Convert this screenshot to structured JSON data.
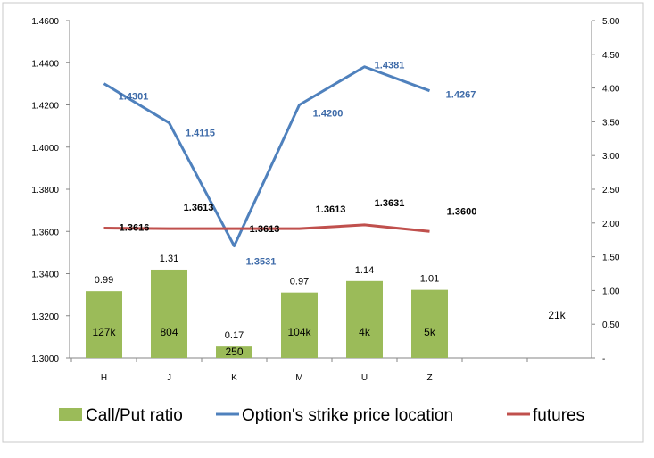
{
  "chart_data": {
    "type": "bar",
    "categories": [
      "H",
      "J",
      "K",
      "M",
      "U",
      "Z"
    ],
    "left_axis": {
      "min": 1.3,
      "max": 1.46,
      "ticks": [
        "1.3000",
        "1.3200",
        "1.3400",
        "1.3600",
        "1.3800",
        "1.4000",
        "1.4200",
        "1.4400",
        "1.4600"
      ]
    },
    "right_axis": {
      "min": 0,
      "max": 5,
      "ticks": [
        "-",
        "0.50",
        "1.00",
        "1.50",
        "2.00",
        "2.50",
        "3.00",
        "3.50",
        "4.00",
        "4.50",
        "5.00"
      ]
    },
    "series": [
      {
        "name": "Call/Put ratio",
        "kind": "bar",
        "axis": "right",
        "color": "#9bbb59",
        "values": [
          0.99,
          1.31,
          0.17,
          0.97,
          1.14,
          1.01
        ],
        "labels": [
          "0.99",
          "1.31",
          "0.17",
          "0.97",
          "1.14",
          "1.01"
        ],
        "volume_labels": [
          "127k",
          "804",
          "250",
          "104k",
          "4k",
          "5k"
        ]
      },
      {
        "name": "Option's strike price location",
        "kind": "line",
        "axis": "left",
        "color": "#4f81bd",
        "values": [
          1.4301,
          1.4115,
          1.3531,
          1.42,
          1.4381,
          1.4267
        ],
        "labels": [
          "1.4301",
          "1.4115",
          "1.3531",
          "1.4200",
          "1.4381",
          "1.4267"
        ]
      },
      {
        "name": "futures",
        "kind": "line",
        "axis": "left",
        "color": "#c0504d",
        "values": [
          1.3616,
          1.3613,
          1.3613,
          1.3613,
          1.3631,
          1.36
        ],
        "labels": [
          "1.3616",
          "1.3613",
          "1.3613",
          "1.3613",
          "1.3631",
          "1.3600"
        ]
      }
    ],
    "extra_annotation": "21k",
    "grid": false,
    "legend_position": "bottom"
  }
}
